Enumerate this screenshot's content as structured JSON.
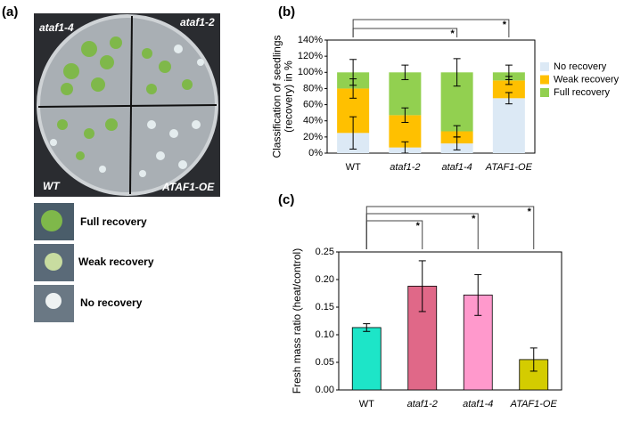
{
  "figure": {
    "panel_labels": [
      "(a)",
      "(b)",
      "(c)"
    ],
    "plate_labels": [
      "ataf1-4",
      "ataf1-2",
      "WT",
      "ATAF1-OE"
    ],
    "recovery_legend": [
      "Full recovery",
      "Weak recovery",
      "No recovery"
    ]
  },
  "chart_data": [
    {
      "type": "stacked_bar",
      "ylabel": [
        "Classification of seedlings",
        "(recovery) in %"
      ],
      "categories": [
        "WT",
        "ataf1-2",
        "ataf1-4",
        "ATAF1-OE"
      ],
      "series": [
        {
          "name": "No recovery",
          "color": "#dce9f5",
          "values": [
            25,
            7,
            12,
            68
          ],
          "errors": [
            20,
            7,
            8,
            7
          ]
        },
        {
          "name": "Weak recovery",
          "color": "#ffc000",
          "values": [
            55,
            40,
            15,
            22
          ],
          "errors": [
            12,
            9,
            7,
            5
          ]
        },
        {
          "name": "Full recovery",
          "color": "#92d050",
          "values": [
            20,
            53,
            73,
            10
          ],
          "errors": [
            16,
            9,
            17,
            9
          ]
        }
      ],
      "ylim": [
        0,
        140
      ],
      "yticks": [
        {
          "value": 0,
          "label": "0%"
        },
        {
          "value": 20,
          "label": "20%"
        },
        {
          "value": 40,
          "label": "40%"
        },
        {
          "value": 60,
          "label": "60%"
        },
        {
          "value": 80,
          "label": "80%"
        },
        {
          "value": 100,
          "label": "100%"
        },
        {
          "value": 120,
          "label": "120%"
        },
        {
          "value": 140,
          "label": "140%"
        }
      ],
      "annotations": [
        "*",
        "*"
      ]
    },
    {
      "type": "bar",
      "ylabel": [
        "Fresh mass ratio (heat/control)"
      ],
      "categories": [
        "WT",
        "ataf1-2",
        "ataf1-4",
        "ATAF1-OE"
      ],
      "values": [
        0.113,
        0.188,
        0.172,
        0.055
      ],
      "errors": [
        0.007,
        0.046,
        0.037,
        0.021
      ],
      "colors": [
        "#1de5c8",
        "#e06888",
        "#ff99cc",
        "#d4cc00"
      ],
      "ylim": [
        0,
        0.25
      ],
      "yticks": [
        {
          "value": 0,
          "label": "0.00"
        },
        0.05,
        {
          "value": 0.1,
          "label": "0.10"
        },
        0.15,
        {
          "value": 0.2,
          "label": "0.20"
        },
        0.25
      ],
      "annotations": [
        "*",
        "*",
        "*"
      ]
    }
  ]
}
